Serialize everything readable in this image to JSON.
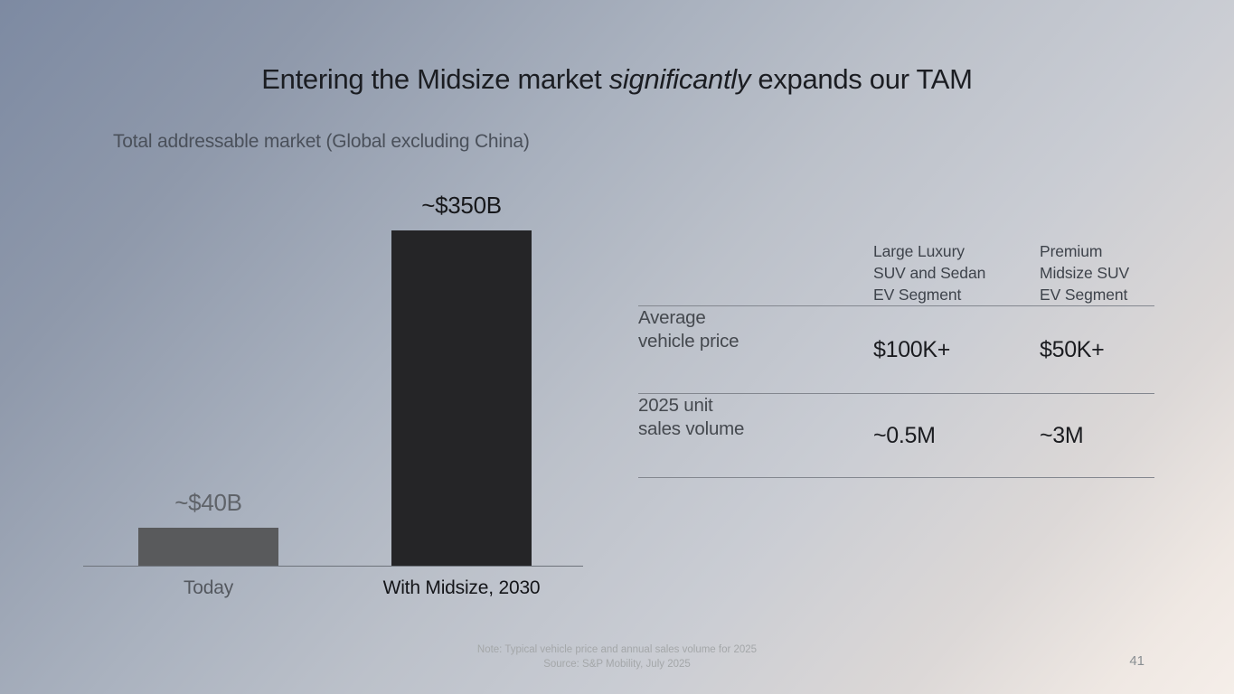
{
  "slide": {
    "title": {
      "pre": "Entering the Midsize market ",
      "italic": "significantly",
      "post": " expands our TAM"
    },
    "subtitle": "Total addressable market (Global excluding China)",
    "footnote_line1": "Note: Typical vehicle price and annual sales volume for 2025",
    "footnote_line2": "Source: S&P Mobility, July 2025",
    "page_number": "41"
  },
  "chart_data": {
    "type": "bar",
    "title": "Total addressable market (Global excluding China)",
    "categories": [
      "Today",
      "With Midsize, 2030"
    ],
    "values": [
      40,
      350
    ],
    "value_labels": [
      "~$40B",
      "~$350B"
    ],
    "unit": "USD billions",
    "ylim": [
      0,
      350
    ],
    "grid": false,
    "legend": false,
    "bar_colors": [
      "#595a5c",
      "#252527"
    ],
    "value_label_colors": [
      "#5f6369",
      "#17181b"
    ],
    "category_label_colors": [
      "#54585f",
      "#141519"
    ]
  },
  "table": {
    "col_headers": [
      [
        "Large Luxury",
        "SUV and Sedan",
        "EV Segment"
      ],
      [
        "Premium",
        "Midsize SUV",
        "EV Segment"
      ]
    ],
    "rows": [
      {
        "label": [
          "Average",
          "vehicle price"
        ],
        "values": [
          "$100K+",
          "$50K+"
        ]
      },
      {
        "label": [
          "2025 unit",
          "sales volume"
        ],
        "values": [
          "~0.5M",
          "~3M"
        ]
      }
    ]
  }
}
